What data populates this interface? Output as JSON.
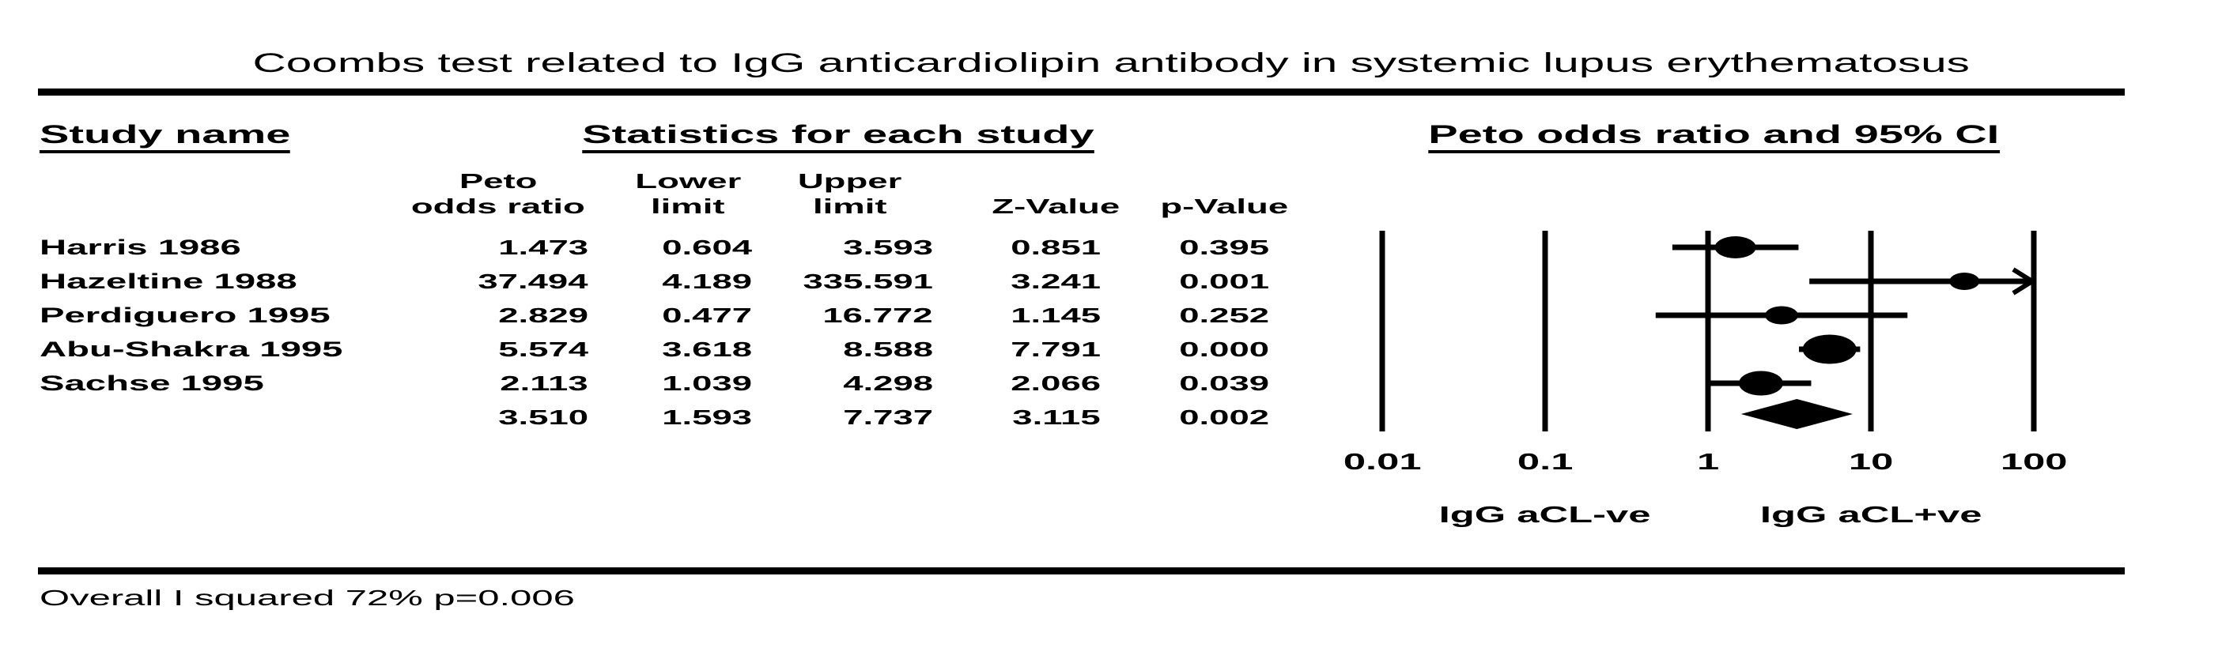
{
  "title": "Coombs test related to IgG anticardiolipin antibody in systemic lupus erythematosus",
  "table": {
    "study_col_header": "Study name",
    "stats_group_header": "Statistics for each study",
    "columns": [
      {
        "line1": "Peto",
        "line2": "odds ratio"
      },
      {
        "line1": "Lower",
        "line2": "limit"
      },
      {
        "line1": "Upper",
        "line2": "limit"
      },
      {
        "line1": "",
        "line2": "Z-Value"
      },
      {
        "line1": "",
        "line2": "p-Value"
      }
    ],
    "rows": [
      {
        "study": "Harris 1986",
        "peto": "1.473",
        "lower": "0.604",
        "upper": "3.593",
        "z": "0.851",
        "p": "0.395"
      },
      {
        "study": "Hazeltine 1988",
        "peto": "37.494",
        "lower": "4.189",
        "upper": "335.591",
        "z": "3.241",
        "p": "0.001"
      },
      {
        "study": "Perdiguero 1995",
        "peto": "2.829",
        "lower": "0.477",
        "upper": "16.772",
        "z": "1.145",
        "p": "0.252"
      },
      {
        "study": "Abu-Shakra 1995",
        "peto": "5.574",
        "lower": "3.618",
        "upper": "8.588",
        "z": "7.791",
        "p": "0.000"
      },
      {
        "study": "Sachse 1995",
        "peto": "2.113",
        "lower": "1.039",
        "upper": "4.298",
        "z": "2.066",
        "p": "0.039"
      },
      {
        "study": "",
        "peto": "3.510",
        "lower": "1.593",
        "upper": "7.737",
        "z": "3.115",
        "p": "0.002"
      }
    ]
  },
  "plot": {
    "group_header": "Peto odds ratio and 95% CI",
    "tick_labels": [
      "0.01",
      "0.1",
      "1",
      "10",
      "100"
    ],
    "left_axis_label": "IgG aCL-ve",
    "right_axis_label": "IgG aCL+ve"
  },
  "footer": "Overall I squared 72% p=0.006",
  "colors": {
    "ink": "#000000",
    "background": "#ffffff"
  },
  "chart_data": {
    "type": "scatter",
    "variant": "forest-plot",
    "title": "Coombs test related to IgG anticardiolipin antibody in systemic lupus erythematosus",
    "effect_measure": "Peto odds ratio and 95% CI",
    "x_scale": "log10",
    "x_ticks": [
      0.01,
      0.1,
      1,
      10,
      100
    ],
    "x_range": [
      0.01,
      100
    ],
    "x_axis_left_label": "IgG aCL-ve",
    "x_axis_right_label": "IgG aCL+ve",
    "grid": "vertical-lines-at-ticks",
    "studies": [
      {
        "name": "Harris 1986",
        "peto_odds_ratio": 1.473,
        "lower": 0.604,
        "upper": 3.593,
        "z_value": 0.851,
        "p_value": 0.395,
        "marker_w": 52,
        "marker_h": 28
      },
      {
        "name": "Hazeltine 1988",
        "peto_odds_ratio": 37.494,
        "lower": 4.189,
        "upper": 335.591,
        "z_value": 3.241,
        "p_value": 0.001,
        "marker_w": 38,
        "marker_h": 22
      },
      {
        "name": "Perdiguero 1995",
        "peto_odds_ratio": 2.829,
        "lower": 0.477,
        "upper": 16.772,
        "z_value": 1.145,
        "p_value": 0.252,
        "marker_w": 42,
        "marker_h": 23
      },
      {
        "name": "Abu-Shakra 1995",
        "peto_odds_ratio": 5.574,
        "lower": 3.618,
        "upper": 8.588,
        "z_value": 7.791,
        "p_value": 0.0,
        "marker_w": 68,
        "marker_h": 37
      },
      {
        "name": "Sachse 1995",
        "peto_odds_ratio": 2.113,
        "lower": 1.039,
        "upper": 4.298,
        "z_value": 2.066,
        "p_value": 0.039,
        "marker_w": 56,
        "marker_h": 31
      }
    ],
    "overall": {
      "peto_odds_ratio": 3.51,
      "lower": 1.593,
      "upper": 7.737,
      "z_value": 3.115,
      "p_value": 0.002,
      "marker": "diamond"
    },
    "heterogeneity_note": "Overall I squared 72% p=0.006"
  }
}
